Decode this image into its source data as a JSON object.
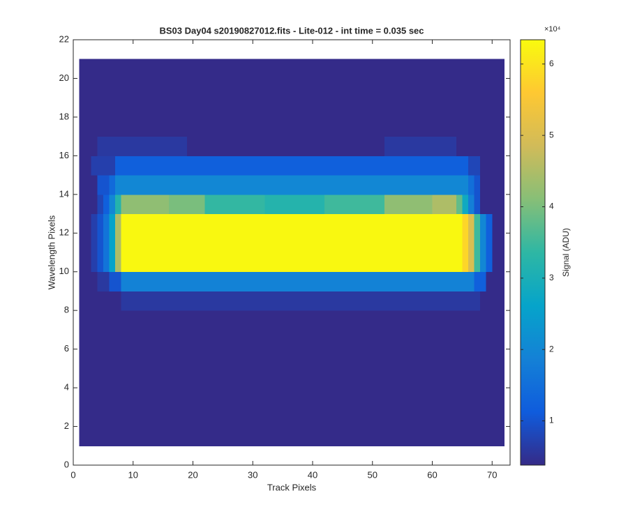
{
  "chart_data": {
    "type": "heatmap",
    "title": "BS03 Day04  s20190827012.fits - Lite-012 - int time = 0.035 sec",
    "x_label": "Track Pixels",
    "y_label": "Wavelength Pixels",
    "xlim": [
      0,
      73
    ],
    "ylim": [
      0,
      22
    ],
    "xticks": [
      0,
      10,
      20,
      30,
      40,
      50,
      60,
      70
    ],
    "yticks": [
      0,
      2,
      4,
      6,
      8,
      10,
      12,
      14,
      16,
      18,
      20,
      22
    ],
    "image_x": [
      1,
      72
    ],
    "image_y": [
      1,
      21
    ],
    "clim": [
      0.38,
      6.34
    ],
    "cticks": [
      1,
      2,
      3,
      4,
      5,
      6
    ],
    "colorbar_multiplier": "×10⁴",
    "colorbar_label": "Signal (ADU)",
    "colormap": [
      "#352a87",
      "#0f5cdd",
      "#1481d6",
      "#06a4ca",
      "#2eb7a4",
      "#87bf77",
      "#d1bb59",
      "#fec832",
      "#f9fb0e"
    ],
    "z": [
      [
        0.4,
        0.4,
        0.4,
        0.4,
        0.4,
        0.4,
        0.4,
        0.4,
        0.4,
        0.4,
        0.4,
        0.4,
        0.4,
        0.4,
        0.4,
        0.4,
        0.4,
        0.4,
        0.4,
        0.4,
        0.4,
        0.4,
        0.4,
        0.4,
        0.4,
        0.4,
        0.4,
        0.4,
        0.4,
        0.4,
        0.4,
        0.4,
        0.4,
        0.4,
        0.4,
        0.4,
        0.4,
        0.4,
        0.4,
        0.4,
        0.4,
        0.4,
        0.4,
        0.4,
        0.4,
        0.4,
        0.4,
        0.4,
        0.4,
        0.4,
        0.4,
        0.4,
        0.4,
        0.4,
        0.4,
        0.4,
        0.4,
        0.4,
        0.4,
        0.4,
        0.4,
        0.4,
        0.4,
        0.4,
        0.4,
        0.4,
        0.4,
        0.4,
        0.4,
        0.4,
        0.4
      ],
      [
        0.4,
        0.4,
        0.4,
        0.4,
        0.4,
        0.4,
        0.4,
        0.4,
        0.4,
        0.4,
        0.4,
        0.4,
        0.4,
        0.4,
        0.4,
        0.4,
        0.4,
        0.4,
        0.4,
        0.4,
        0.4,
        0.4,
        0.4,
        0.4,
        0.4,
        0.4,
        0.4,
        0.4,
        0.4,
        0.4,
        0.4,
        0.4,
        0.4,
        0.4,
        0.4,
        0.4,
        0.4,
        0.4,
        0.4,
        0.4,
        0.4,
        0.4,
        0.4,
        0.4,
        0.4,
        0.4,
        0.4,
        0.4,
        0.4,
        0.4,
        0.4,
        0.4,
        0.4,
        0.4,
        0.4,
        0.4,
        0.4,
        0.4,
        0.4,
        0.4,
        0.4,
        0.4,
        0.4,
        0.4,
        0.4,
        0.4,
        0.4,
        0.4,
        0.4,
        0.4,
        0.4
      ],
      [
        0.4,
        0.4,
        0.4,
        0.4,
        0.4,
        0.4,
        0.4,
        0.4,
        0.4,
        0.4,
        0.4,
        0.4,
        0.4,
        0.4,
        0.4,
        0.4,
        0.4,
        0.4,
        0.4,
        0.4,
        0.4,
        0.4,
        0.4,
        0.4,
        0.4,
        0.4,
        0.4,
        0.4,
        0.4,
        0.4,
        0.4,
        0.4,
        0.4,
        0.4,
        0.4,
        0.4,
        0.4,
        0.4,
        0.4,
        0.4,
        0.4,
        0.4,
        0.4,
        0.4,
        0.4,
        0.4,
        0.4,
        0.4,
        0.4,
        0.4,
        0.4,
        0.4,
        0.4,
        0.4,
        0.4,
        0.4,
        0.4,
        0.4,
        0.4,
        0.4,
        0.4,
        0.4,
        0.4,
        0.4,
        0.4,
        0.4,
        0.4,
        0.4,
        0.4,
        0.4,
        0.4
      ],
      [
        0.4,
        0.4,
        0.4,
        0.4,
        0.4,
        0.4,
        0.4,
        0.4,
        0.4,
        0.4,
        0.4,
        0.4,
        0.4,
        0.4,
        0.4,
        0.4,
        0.4,
        0.4,
        0.4,
        0.4,
        0.4,
        0.4,
        0.4,
        0.4,
        0.4,
        0.4,
        0.4,
        0.4,
        0.4,
        0.4,
        0.4,
        0.4,
        0.4,
        0.4,
        0.4,
        0.4,
        0.4,
        0.4,
        0.4,
        0.4,
        0.4,
        0.4,
        0.4,
        0.4,
        0.4,
        0.4,
        0.4,
        0.4,
        0.4,
        0.4,
        0.4,
        0.4,
        0.4,
        0.4,
        0.4,
        0.4,
        0.4,
        0.4,
        0.4,
        0.4,
        0.4,
        0.4,
        0.4,
        0.4,
        0.4,
        0.4,
        0.4,
        0.4,
        0.4,
        0.4,
        0.4
      ],
      [
        0.4,
        0.4,
        0.4,
        0.4,
        0.4,
        0.4,
        0.4,
        0.4,
        0.4,
        0.4,
        0.4,
        0.4,
        0.4,
        0.4,
        0.4,
        0.4,
        0.4,
        0.4,
        0.4,
        0.4,
        0.4,
        0.4,
        0.4,
        0.4,
        0.4,
        0.4,
        0.4,
        0.4,
        0.4,
        0.4,
        0.4,
        0.4,
        0.4,
        0.4,
        0.4,
        0.4,
        0.4,
        0.4,
        0.4,
        0.4,
        0.4,
        0.4,
        0.4,
        0.4,
        0.4,
        0.4,
        0.4,
        0.4,
        0.4,
        0.4,
        0.4,
        0.4,
        0.4,
        0.4,
        0.4,
        0.4,
        0.4,
        0.4,
        0.4,
        0.4,
        0.4,
        0.4,
        0.4,
        0.4,
        0.4,
        0.4,
        0.4,
        0.4,
        0.4,
        0.4,
        0.4
      ],
      [
        0.4,
        0.4,
        0.4,
        0.4,
        0.4,
        0.4,
        0.4,
        0.4,
        0.4,
        0.4,
        0.4,
        0.4,
        0.4,
        0.4,
        0.4,
        0.4,
        0.4,
        0.4,
        0.4,
        0.4,
        0.4,
        0.4,
        0.4,
        0.4,
        0.4,
        0.4,
        0.4,
        0.4,
        0.4,
        0.4,
        0.4,
        0.4,
        0.4,
        0.4,
        0.4,
        0.4,
        0.4,
        0.4,
        0.4,
        0.4,
        0.4,
        0.4,
        0.4,
        0.4,
        0.4,
        0.4,
        0.4,
        0.4,
        0.4,
        0.4,
        0.4,
        0.4,
        0.4,
        0.4,
        0.4,
        0.4,
        0.4,
        0.4,
        0.4,
        0.4,
        0.4,
        0.4,
        0.4,
        0.4,
        0.4,
        0.4,
        0.4,
        0.4,
        0.4,
        0.4,
        0.4
      ],
      [
        0.4,
        0.4,
        0.4,
        0.4,
        0.4,
        0.4,
        0.4,
        0.4,
        0.4,
        0.4,
        0.4,
        0.4,
        0.4,
        0.4,
        0.4,
        0.4,
        0.4,
        0.4,
        0.4,
        0.4,
        0.4,
        0.4,
        0.4,
        0.4,
        0.4,
        0.4,
        0.4,
        0.4,
        0.4,
        0.4,
        0.4,
        0.4,
        0.4,
        0.4,
        0.4,
        0.4,
        0.4,
        0.4,
        0.4,
        0.4,
        0.4,
        0.4,
        0.4,
        0.4,
        0.4,
        0.4,
        0.4,
        0.4,
        0.4,
        0.4,
        0.4,
        0.4,
        0.4,
        0.4,
        0.4,
        0.4,
        0.4,
        0.4,
        0.4,
        0.4,
        0.4,
        0.4,
        0.4,
        0.4,
        0.4,
        0.4,
        0.4,
        0.4,
        0.4,
        0.4,
        0.4
      ],
      [
        0.4,
        0.4,
        0.4,
        0.4,
        0.4,
        0.4,
        0.4,
        0.6,
        0.6,
        0.6,
        0.6,
        0.6,
        0.6,
        0.6,
        0.6,
        0.6,
        0.6,
        0.6,
        0.6,
        0.6,
        0.6,
        0.6,
        0.6,
        0.6,
        0.6,
        0.6,
        0.6,
        0.6,
        0.6,
        0.6,
        0.6,
        0.6,
        0.6,
        0.6,
        0.6,
        0.6,
        0.6,
        0.6,
        0.6,
        0.6,
        0.6,
        0.6,
        0.6,
        0.6,
        0.6,
        0.6,
        0.6,
        0.6,
        0.6,
        0.6,
        0.6,
        0.6,
        0.6,
        0.6,
        0.6,
        0.6,
        0.6,
        0.6,
        0.6,
        0.6,
        0.6,
        0.6,
        0.6,
        0.6,
        0.6,
        0.6,
        0.6,
        0.4,
        0.4,
        0.4,
        0.4
      ],
      [
        0.4,
        0.4,
        0.4,
        0.6,
        0.6,
        1,
        1,
        1.9,
        1.9,
        1.9,
        1.9,
        1.9,
        1.9,
        1.9,
        1.9,
        1.9,
        1.9,
        1.9,
        1.9,
        1.9,
        1.9,
        1.9,
        1.9,
        1.9,
        1.9,
        1.9,
        1.9,
        1.9,
        1.9,
        1.9,
        1.9,
        1.9,
        1.9,
        1.9,
        1.9,
        1.9,
        1.9,
        1.9,
        1.9,
        1.9,
        1.9,
        1.9,
        1.9,
        1.9,
        1.9,
        1.9,
        1.9,
        1.9,
        1.9,
        1.9,
        1.9,
        1.9,
        1.9,
        1.9,
        1.9,
        1.9,
        1.9,
        1.9,
        1.9,
        1.9,
        1.9,
        1.9,
        1.9,
        1.9,
        1.9,
        1.9,
        1.2,
        1.2,
        0.4,
        0.4,
        0.4
      ],
      [
        0.4,
        0.4,
        0.7,
        1,
        1.6,
        2.6,
        4.5,
        6.3,
        6.3,
        6.3,
        6.3,
        6.3,
        6.3,
        6.3,
        6.3,
        6.3,
        6.3,
        6.3,
        6.3,
        6.3,
        6.3,
        6.3,
        6.3,
        6.3,
        6.3,
        6.3,
        6.3,
        6.3,
        6.3,
        6.3,
        6.3,
        6.3,
        6.3,
        6.3,
        6.3,
        6.3,
        6.3,
        6.3,
        6.3,
        6.3,
        6.3,
        6.3,
        6.3,
        6.3,
        6.3,
        6.3,
        6.3,
        6.3,
        6.3,
        6.3,
        6.3,
        6.3,
        6.3,
        6.3,
        6.3,
        6.3,
        6.3,
        6.3,
        6.3,
        6.3,
        6.3,
        6.3,
        6.3,
        6.3,
        5.8,
        5,
        3.5,
        2,
        1.2,
        0.4,
        0.4
      ],
      [
        0.4,
        0.4,
        0.7,
        1,
        1.6,
        2.6,
        4.5,
        6.3,
        6.3,
        6.3,
        6.3,
        6.3,
        6.3,
        6.3,
        6.3,
        6.3,
        6.3,
        6.3,
        6.3,
        6.3,
        6.3,
        6.3,
        6.3,
        6.3,
        6.3,
        6.3,
        6.3,
        6.3,
        6.3,
        6.3,
        6.3,
        6.3,
        6.3,
        6.3,
        6.3,
        6.3,
        6.3,
        6.3,
        6.3,
        6.3,
        6.3,
        6.3,
        6.3,
        6.3,
        6.3,
        6.3,
        6.3,
        6.3,
        6.3,
        6.3,
        6.3,
        6.3,
        6.3,
        6.3,
        6.3,
        6.3,
        6.3,
        6.3,
        6.3,
        6.3,
        6.3,
        6.3,
        6.3,
        6.3,
        5.8,
        5,
        3.5,
        2,
        1.2,
        0.4,
        0.4
      ],
      [
        0.4,
        0.4,
        0.7,
        1,
        1.6,
        2.6,
        4.5,
        6.3,
        6.3,
        6.3,
        6.3,
        6.3,
        6.3,
        6.3,
        6.3,
        6.3,
        6.3,
        6.3,
        6.3,
        6.3,
        6.3,
        6.3,
        6.3,
        6.3,
        6.3,
        6.3,
        6.3,
        6.3,
        6.3,
        6.3,
        6.3,
        6.3,
        6.3,
        6.3,
        6.3,
        6.3,
        6.3,
        6.3,
        6.3,
        6.3,
        6.3,
        6.3,
        6.3,
        6.3,
        6.3,
        6.3,
        6.3,
        6.3,
        6.3,
        6.3,
        6.3,
        6.3,
        6.3,
        6.3,
        6.3,
        6.3,
        6.3,
        6.3,
        6.3,
        6.3,
        6.3,
        6.3,
        6.3,
        6.3,
        5.8,
        5,
        3.5,
        2,
        1.2,
        0.4,
        0.4
      ],
      [
        0.4,
        0.4,
        0.4,
        0.8,
        1.2,
        2,
        3.2,
        4.2,
        4.2,
        4.2,
        4.2,
        4.2,
        4.2,
        4.2,
        4.2,
        4,
        4,
        4,
        4,
        4,
        4,
        3.4,
        3.4,
        3.4,
        3.4,
        3.4,
        3.4,
        3.4,
        3.4,
        3.4,
        3.4,
        3.2,
        3.2,
        3.2,
        3.2,
        3.2,
        3.2,
        3.2,
        3.2,
        3.2,
        3.2,
        3.5,
        3.5,
        3.5,
        3.5,
        3.5,
        3.5,
        3.5,
        3.5,
        3.5,
        3.5,
        4.2,
        4.2,
        4.2,
        4.2,
        4.2,
        4.2,
        4.2,
        4.2,
        4.5,
        4.5,
        4.5,
        4.5,
        3.8,
        2.8,
        1.8,
        1,
        0.4,
        0.4,
        0.4,
        0.4
      ],
      [
        0.4,
        0.4,
        0.4,
        1,
        1,
        1.4,
        2,
        2,
        2,
        2,
        2,
        2,
        2,
        2,
        2,
        2,
        2,
        2,
        2,
        2,
        2,
        2,
        2,
        2,
        2,
        2,
        2,
        2,
        2,
        2,
        2,
        2,
        2,
        2,
        2,
        2,
        2,
        2,
        2,
        2,
        2,
        2,
        2,
        2,
        2,
        2,
        2,
        2,
        2,
        2,
        2,
        2,
        2,
        2,
        2,
        2,
        2,
        2,
        2,
        2,
        2,
        2,
        2,
        2,
        2,
        1.5,
        1,
        0.4,
        0.4,
        0.4,
        0.4
      ],
      [
        0.4,
        0.4,
        0.7,
        0.7,
        0.7,
        0.7,
        1.2,
        1.2,
        1.2,
        1.2,
        1.2,
        1.2,
        1.2,
        1.2,
        1.2,
        1.2,
        1.2,
        1.2,
        1.2,
        1.2,
        1.2,
        1.2,
        1.2,
        1.2,
        1.2,
        1.2,
        1.2,
        1.2,
        1.2,
        1.2,
        1.2,
        1.2,
        1.2,
        1.2,
        1.2,
        1.2,
        1.2,
        1.2,
        1.2,
        1.2,
        1.2,
        1.2,
        1.2,
        1.2,
        1.2,
        1.2,
        1.2,
        1.2,
        1.2,
        1.2,
        1.2,
        1.2,
        1.2,
        1.2,
        1.2,
        1.2,
        1.2,
        1.2,
        1.2,
        1.2,
        1.2,
        1.2,
        1.2,
        1.2,
        1.2,
        0.8,
        0.8,
        0.4,
        0.4,
        0.4,
        0.4
      ],
      [
        0.4,
        0.4,
        0.4,
        0.6,
        0.6,
        0.6,
        0.6,
        0.6,
        0.6,
        0.6,
        0.6,
        0.6,
        0.6,
        0.6,
        0.6,
        0.6,
        0.6,
        0.6,
        0.4,
        0.4,
        0.4,
        0.4,
        0.4,
        0.4,
        0.4,
        0.4,
        0.4,
        0.4,
        0.4,
        0.4,
        0.4,
        0.4,
        0.4,
        0.4,
        0.4,
        0.4,
        0.4,
        0.4,
        0.4,
        0.4,
        0.4,
        0.4,
        0.4,
        0.4,
        0.4,
        0.4,
        0.4,
        0.4,
        0.4,
        0.4,
        0.4,
        0.6,
        0.6,
        0.6,
        0.6,
        0.6,
        0.6,
        0.6,
        0.6,
        0.6,
        0.6,
        0.6,
        0.6,
        0.4,
        0.4,
        0.4,
        0.4,
        0.4,
        0.4,
        0.4,
        0.4
      ],
      [
        0.4,
        0.4,
        0.4,
        0.4,
        0.4,
        0.4,
        0.4,
        0.4,
        0.4,
        0.4,
        0.4,
        0.4,
        0.4,
        0.4,
        0.4,
        0.4,
        0.4,
        0.4,
        0.4,
        0.4,
        0.4,
        0.4,
        0.4,
        0.4,
        0.4,
        0.4,
        0.4,
        0.4,
        0.4,
        0.4,
        0.4,
        0.4,
        0.4,
        0.4,
        0.4,
        0.4,
        0.4,
        0.4,
        0.4,
        0.4,
        0.4,
        0.4,
        0.4,
        0.4,
        0.4,
        0.4,
        0.4,
        0.4,
        0.4,
        0.4,
        0.4,
        0.4,
        0.4,
        0.4,
        0.4,
        0.4,
        0.4,
        0.4,
        0.4,
        0.4,
        0.4,
        0.4,
        0.4,
        0.4,
        0.4,
        0.4,
        0.4,
        0.4,
        0.4,
        0.4,
        0.4
      ],
      [
        0.4,
        0.4,
        0.4,
        0.4,
        0.4,
        0.4,
        0.4,
        0.4,
        0.4,
        0.4,
        0.4,
        0.4,
        0.4,
        0.4,
        0.4,
        0.4,
        0.4,
        0.4,
        0.4,
        0.4,
        0.4,
        0.4,
        0.4,
        0.4,
        0.4,
        0.4,
        0.4,
        0.4,
        0.4,
        0.4,
        0.4,
        0.4,
        0.4,
        0.4,
        0.4,
        0.4,
        0.4,
        0.4,
        0.4,
        0.4,
        0.4,
        0.4,
        0.4,
        0.4,
        0.4,
        0.4,
        0.4,
        0.4,
        0.4,
        0.4,
        0.4,
        0.4,
        0.4,
        0.4,
        0.4,
        0.4,
        0.4,
        0.4,
        0.4,
        0.4,
        0.4,
        0.4,
        0.4,
        0.4,
        0.4,
        0.4,
        0.4,
        0.4,
        0.4,
        0.4,
        0.4
      ],
      [
        0.4,
        0.4,
        0.4,
        0.4,
        0.4,
        0.4,
        0.4,
        0.4,
        0.4,
        0.4,
        0.4,
        0.4,
        0.4,
        0.4,
        0.4,
        0.4,
        0.4,
        0.4,
        0.4,
        0.4,
        0.4,
        0.4,
        0.4,
        0.4,
        0.4,
        0.4,
        0.4,
        0.4,
        0.4,
        0.4,
        0.4,
        0.4,
        0.4,
        0.4,
        0.4,
        0.4,
        0.4,
        0.4,
        0.4,
        0.4,
        0.4,
        0.4,
        0.4,
        0.4,
        0.4,
        0.4,
        0.4,
        0.4,
        0.4,
        0.4,
        0.4,
        0.4,
        0.4,
        0.4,
        0.4,
        0.4,
        0.4,
        0.4,
        0.4,
        0.4,
        0.4,
        0.4,
        0.4,
        0.4,
        0.4,
        0.4,
        0.4,
        0.4,
        0.4,
        0.4,
        0.4
      ],
      [
        0.4,
        0.4,
        0.4,
        0.4,
        0.4,
        0.4,
        0.4,
        0.4,
        0.4,
        0.4,
        0.4,
        0.4,
        0.4,
        0.4,
        0.4,
        0.4,
        0.4,
        0.4,
        0.4,
        0.4,
        0.4,
        0.4,
        0.4,
        0.4,
        0.4,
        0.4,
        0.4,
        0.4,
        0.4,
        0.4,
        0.4,
        0.4,
        0.4,
        0.4,
        0.4,
        0.4,
        0.4,
        0.4,
        0.4,
        0.4,
        0.4,
        0.4,
        0.4,
        0.4,
        0.4,
        0.4,
        0.4,
        0.4,
        0.4,
        0.4,
        0.4,
        0.4,
        0.4,
        0.4,
        0.4,
        0.4,
        0.4,
        0.4,
        0.4,
        0.4,
        0.4,
        0.4,
        0.4,
        0.4,
        0.4,
        0.4,
        0.4,
        0.4,
        0.4,
        0.4,
        0.4
      ]
    ]
  }
}
